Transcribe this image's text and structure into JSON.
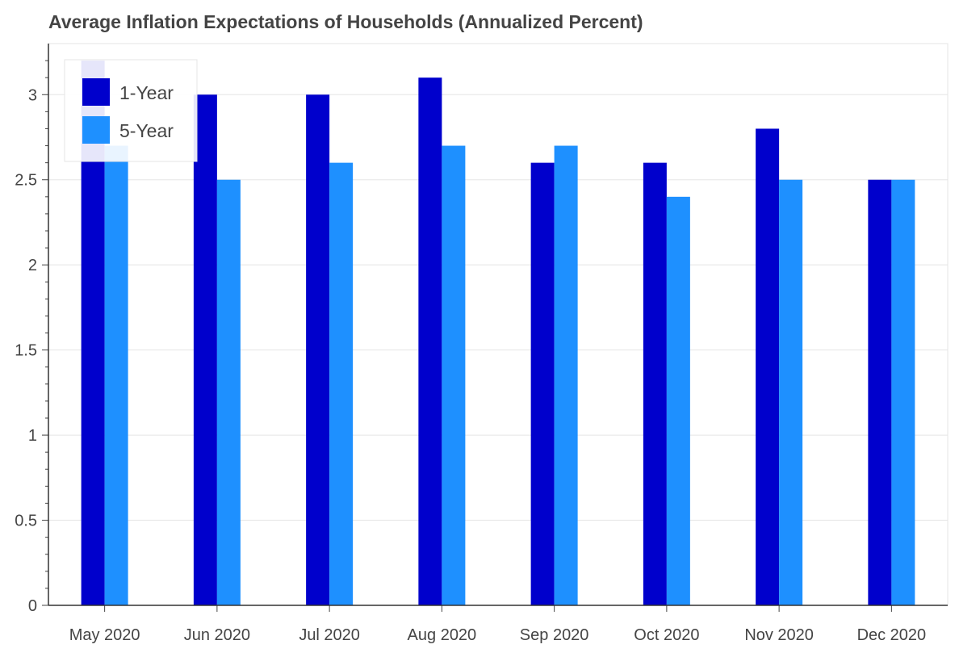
{
  "chart_data": {
    "type": "bar",
    "title": "Average Inflation Expectations of Households (Annualized Percent)",
    "xlabel": "",
    "ylabel": "",
    "categories": [
      "May 2020",
      "Jun 2020",
      "Jul 2020",
      "Aug 2020",
      "Sep 2020",
      "Oct 2020",
      "Nov 2020",
      "Dec 2020"
    ],
    "series": [
      {
        "name": "1-Year",
        "color": "#0000CC",
        "values": [
          3.2,
          3.0,
          3.0,
          3.1,
          2.6,
          2.6,
          2.8,
          2.5
        ]
      },
      {
        "name": "5-Year",
        "color": "#1E90FF",
        "values": [
          2.7,
          2.5,
          2.6,
          2.7,
          2.7,
          2.4,
          2.5,
          2.5
        ]
      }
    ],
    "ylim": [
      0,
      3.3
    ],
    "yticks": [
      "0",
      "0.5",
      "1",
      "1.5",
      "2",
      "2.5",
      "3"
    ],
    "grid": true,
    "legend_position": "top-left"
  }
}
